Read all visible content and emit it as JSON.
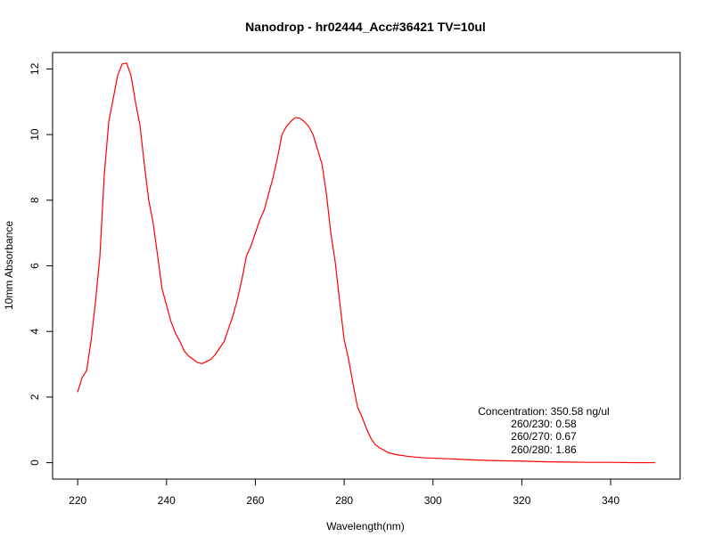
{
  "chart_data": {
    "type": "line",
    "title": "Nanodrop - hr02444_Acc#36421 TV=10ul",
    "xlabel": "Wavelength(nm)",
    "ylabel": "10mm Absorbance",
    "xlim": [
      220,
      350
    ],
    "ylim": [
      -0.5,
      12.5
    ],
    "x_ticks": [
      220,
      240,
      260,
      280,
      300,
      320,
      340
    ],
    "y_ticks": [
      0,
      2,
      4,
      6,
      8,
      10,
      12
    ],
    "grid": false,
    "series": [
      {
        "color": "#ff0000",
        "x": [
          220,
          221,
          222,
          223,
          224,
          225,
          226,
          227,
          228,
          229,
          230,
          231,
          232,
          233,
          234,
          235,
          236,
          237,
          238,
          239,
          240,
          241,
          242,
          243,
          244,
          245,
          246,
          247,
          248,
          249,
          250,
          251,
          252,
          253,
          254,
          255,
          256,
          257,
          258,
          259,
          260,
          261,
          262,
          263,
          264,
          265,
          266,
          267,
          268,
          269,
          270,
          271,
          272,
          273,
          274,
          275,
          276,
          277,
          278,
          279,
          280,
          281,
          282,
          283,
          284,
          285,
          286,
          287,
          288,
          289,
          290,
          292,
          294,
          296,
          298,
          300,
          305,
          310,
          315,
          320,
          325,
          330,
          335,
          340,
          345,
          350
        ],
        "y": [
          2.15,
          2.6,
          2.8,
          3.7,
          4.9,
          6.3,
          8.8,
          10.4,
          11.1,
          11.8,
          12.15,
          12.18,
          11.8,
          11.0,
          10.3,
          9.1,
          8.0,
          7.3,
          6.3,
          5.3,
          4.8,
          4.3,
          3.95,
          3.7,
          3.4,
          3.25,
          3.15,
          3.05,
          3.02,
          3.08,
          3.15,
          3.3,
          3.5,
          3.7,
          4.1,
          4.5,
          5.0,
          5.6,
          6.3,
          6.6,
          7.0,
          7.4,
          7.7,
          8.2,
          8.7,
          9.3,
          10.0,
          10.25,
          10.4,
          10.52,
          10.5,
          10.4,
          10.25,
          10.0,
          9.55,
          9.1,
          8.2,
          7.0,
          6.1,
          4.9,
          3.75,
          3.15,
          2.4,
          1.7,
          1.4,
          1.05,
          0.75,
          0.55,
          0.45,
          0.38,
          0.3,
          0.24,
          0.2,
          0.17,
          0.15,
          0.14,
          0.11,
          0.08,
          0.06,
          0.05,
          0.03,
          0.02,
          0.01,
          0.01,
          0.0,
          0.0
        ]
      }
    ],
    "annotations": [
      "Concentration: 350.58 ng/ul",
      "260/230: 0.58",
      "260/270: 0.67",
      "260/280: 1.86"
    ]
  }
}
